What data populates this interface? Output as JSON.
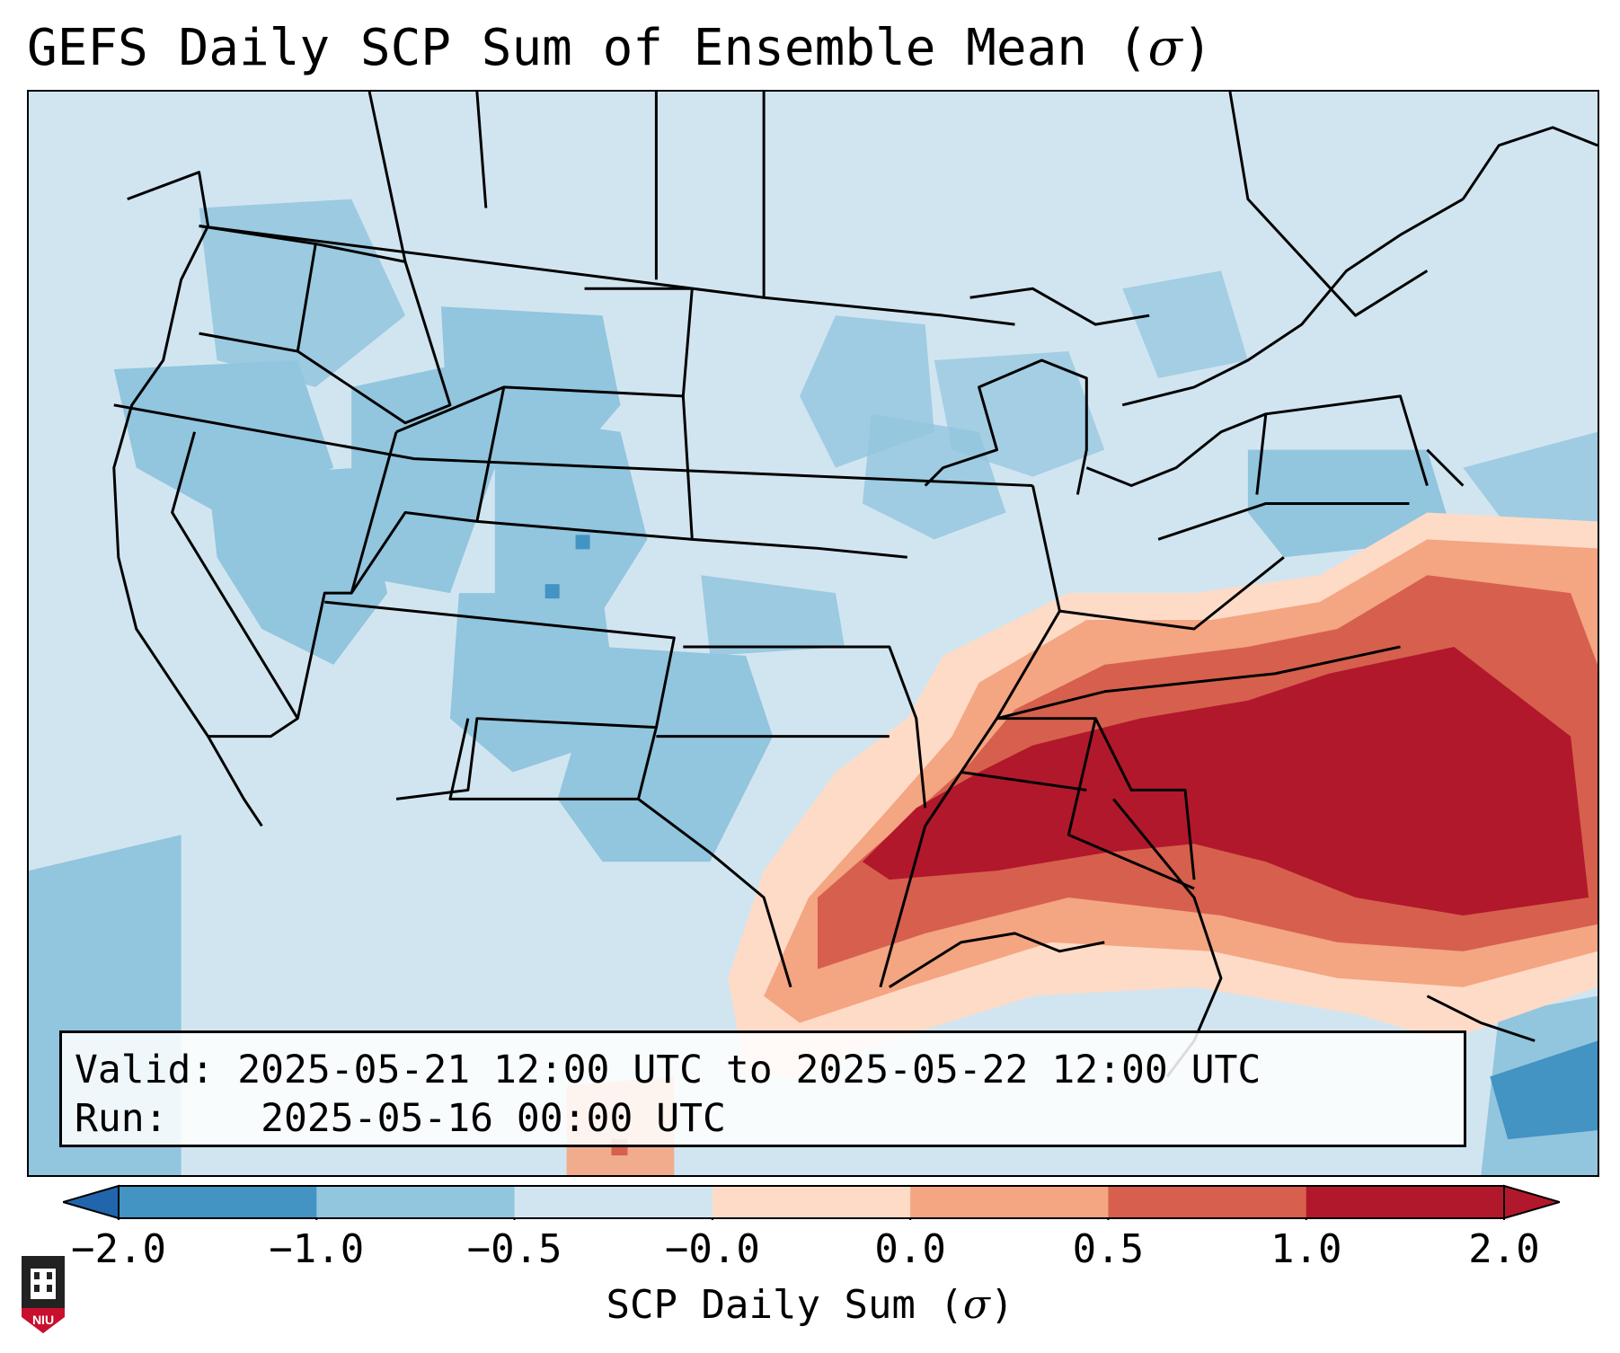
{
  "title": {
    "text": "GEFS Daily SCP Sum of Ensemble Mean (",
    "sigma": "σ",
    "close": ")"
  },
  "info": {
    "valid_label": "Valid:",
    "valid_value": "2025-05-21 12:00 UTC to 2025-05-22 12:00 UTC",
    "run_label": "Run:",
    "run_value": "2025-05-16 00:00 UTC"
  },
  "colorbar": {
    "ticks": [
      "−2.0",
      "−1.0",
      "−0.5",
      "−0.0",
      "0.0",
      "0.5",
      "1.0",
      "2.0"
    ],
    "colors": [
      "#4393c3",
      "#92c5de",
      "#d1e5f0",
      "#f7f7f7",
      "#fddbc7",
      "#f4a582",
      "#d6604d",
      "#b2182b"
    ],
    "under_color": "#2166ac",
    "over_color": "#b2182b",
    "label": "SCP Daily Sum (",
    "label_sigma": "σ",
    "label_close": ")"
  },
  "logo": {
    "text": "NIU",
    "color": "#c8102e"
  },
  "map": {
    "background_color": "#d1e5f0",
    "border_color": "#000000"
  }
}
